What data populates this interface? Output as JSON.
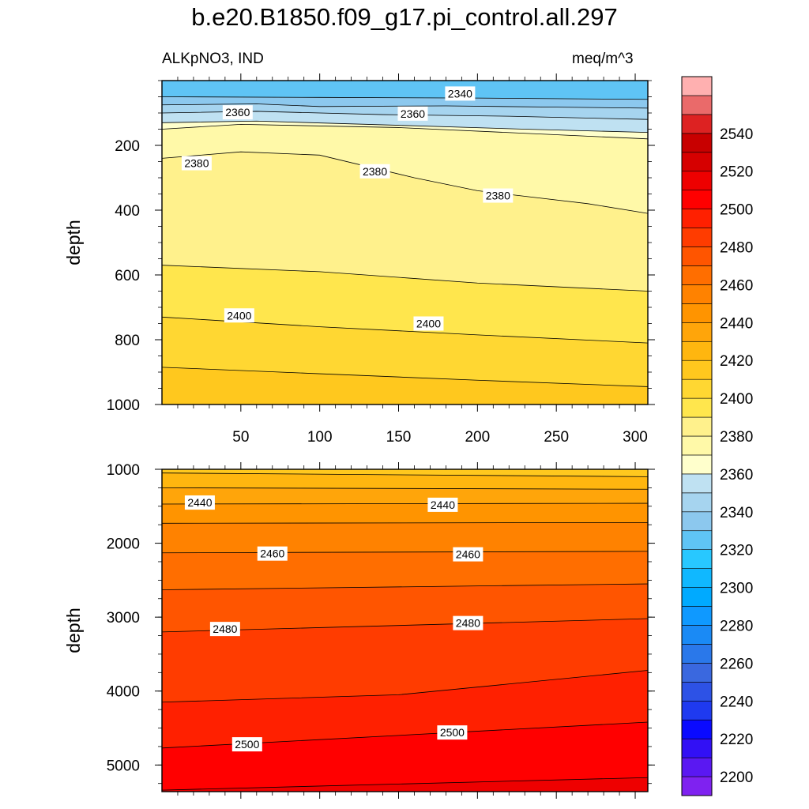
{
  "title": "b.e20.B1850.f09_g17.pi_control.all.297",
  "subtitle_left": "ALKpNO3, IND",
  "subtitle_right": "meq/m^3",
  "chart_data": [
    {
      "type": "heatmap",
      "name": "upper-panel",
      "ylabel": "depth",
      "xlim": [
        0,
        308
      ],
      "ylim": [
        1000,
        0
      ],
      "x_ticks": [
        50,
        100,
        150,
        200,
        250,
        300
      ],
      "x_tick_labels": [
        "50",
        "100",
        "150",
        "200",
        "250",
        "300"
      ],
      "y_ticks": [
        200,
        400,
        600,
        800,
        1000
      ],
      "y_tick_labels": [
        "200",
        "400",
        "600",
        "800",
        "1000"
      ],
      "contours": [
        {
          "level": 2330,
          "points": [
            [
              0,
              50
            ],
            [
              100,
              52
            ],
            [
              200,
              54
            ],
            [
              308,
              58
            ]
          ]
        },
        {
          "level": 2340,
          "points": [
            [
              0,
              75
            ],
            [
              60,
              72
            ],
            [
              100,
              80
            ],
            [
              180,
              78
            ],
            [
              250,
              82
            ],
            [
              308,
              85
            ]
          ]
        },
        {
          "level": 2350,
          "points": [
            [
              0,
              100
            ],
            [
              60,
              95
            ],
            [
              140,
              105
            ],
            [
              220,
              110
            ],
            [
              308,
              120
            ]
          ]
        },
        {
          "level": 2360,
          "points": [
            [
              0,
              130
            ],
            [
              60,
              125
            ],
            [
              150,
              138
            ],
            [
              230,
              150
            ],
            [
              308,
              160
            ]
          ]
        },
        {
          "level": 2370,
          "points": [
            [
              0,
              150
            ],
            [
              50,
              135
            ],
            [
              150,
              145
            ],
            [
              240,
              165
            ],
            [
              308,
              180
            ]
          ]
        },
        {
          "level": 2380,
          "points": [
            [
              0,
              240
            ],
            [
              50,
              220
            ],
            [
              100,
              230
            ],
            [
              160,
              300
            ],
            [
              200,
              340
            ],
            [
              270,
              380
            ],
            [
              308,
              410
            ]
          ]
        },
        {
          "level": 2390,
          "points": [
            [
              0,
              570
            ],
            [
              100,
              590
            ],
            [
              200,
              625
            ],
            [
              308,
              650
            ]
          ]
        },
        {
          "level": 2400,
          "points": [
            [
              0,
              730
            ],
            [
              100,
              760
            ],
            [
              200,
              785
            ],
            [
              308,
              810
            ]
          ]
        },
        {
          "level": 2410,
          "points": [
            [
              0,
              885
            ],
            [
              100,
              905
            ],
            [
              200,
              925
            ],
            [
              308,
              945
            ]
          ]
        }
      ],
      "contour_labels": [
        {
          "text": "2340",
          "x": 189,
          "y": 40
        },
        {
          "text": "2360",
          "x": 48,
          "y": 98
        },
        {
          "text": "2360",
          "x": 159,
          "y": 102
        },
        {
          "text": "2380",
          "x": 22,
          "y": 255
        },
        {
          "text": "2380",
          "x": 135,
          "y": 280
        },
        {
          "text": "2380",
          "x": 213,
          "y": 355
        },
        {
          "text": "2400",
          "x": 49,
          "y": 725
        },
        {
          "text": "2400",
          "x": 169,
          "y": 750
        }
      ]
    },
    {
      "type": "heatmap",
      "name": "lower-panel",
      "ylabel": "depth",
      "xlim": [
        0,
        308
      ],
      "ylim": [
        5360,
        1000
      ],
      "y_ticks": [
        1000,
        2000,
        3000,
        4000,
        5000
      ],
      "y_tick_labels": [
        "1000",
        "2000",
        "3000",
        "4000",
        "5000"
      ],
      "contours": [
        {
          "level": 2420,
          "points": [
            [
              0,
              1050
            ],
            [
              308,
              1100
            ]
          ]
        },
        {
          "level": 2430,
          "points": [
            [
              0,
              1250
            ],
            [
              308,
              1270
            ]
          ]
        },
        {
          "level": 2440,
          "points": [
            [
              0,
              1470
            ],
            [
              308,
              1460
            ]
          ]
        },
        {
          "level": 2450,
          "points": [
            [
              0,
              1730
            ],
            [
              308,
              1720
            ]
          ]
        },
        {
          "level": 2460,
          "points": [
            [
              0,
              2130
            ],
            [
              308,
              2110
            ]
          ]
        },
        {
          "level": 2470,
          "points": [
            [
              0,
              2630
            ],
            [
              308,
              2550
            ]
          ]
        },
        {
          "level": 2480,
          "points": [
            [
              0,
              3200
            ],
            [
              308,
              3020
            ]
          ]
        },
        {
          "level": 2490,
          "points": [
            [
              0,
              4150
            ],
            [
              150,
              4050
            ],
            [
              308,
              3720
            ]
          ]
        },
        {
          "level": 2500,
          "points": [
            [
              0,
              4770
            ],
            [
              308,
              4420
            ]
          ]
        },
        {
          "level": 2510,
          "points": [
            [
              0,
              5340
            ],
            [
              308,
              5170
            ]
          ]
        }
      ],
      "contour_labels": [
        {
          "text": "2440",
          "x": 24,
          "y": 1450
        },
        {
          "text": "2440",
          "x": 178,
          "y": 1480
        },
        {
          "text": "2460",
          "x": 70,
          "y": 2140
        },
        {
          "text": "2460",
          "x": 194,
          "y": 2150
        },
        {
          "text": "2480",
          "x": 40,
          "y": 3160
        },
        {
          "text": "2480",
          "x": 194,
          "y": 3080
        },
        {
          "text": "2500",
          "x": 54,
          "y": 4720
        },
        {
          "text": "2500",
          "x": 184,
          "y": 4560
        }
      ]
    },
    {
      "type": "colorbar",
      "name": "colorbar",
      "boundaries": [
        2190,
        2200,
        2210,
        2220,
        2230,
        2240,
        2250,
        2260,
        2270,
        2280,
        2290,
        2300,
        2310,
        2320,
        2330,
        2340,
        2350,
        2360,
        2370,
        2380,
        2390,
        2400,
        2410,
        2420,
        2430,
        2440,
        2450,
        2460,
        2470,
        2480,
        2490,
        2500,
        2510,
        2520,
        2530,
        2540,
        2550,
        2560
      ],
      "colors": [
        "#7f22f0",
        "#5a18f2",
        "#3210f5",
        "#0a0aff",
        "#1f3af0",
        "#2d52e6",
        "#3a68df",
        "#2a78ea",
        "#1a8af5",
        "#0f99ff",
        "#00aaff",
        "#10b8ff",
        "#28c8ff",
        "#5fc4f5",
        "#8cc8ee",
        "#a6d4ef",
        "#bfe1f2",
        "#ffffcc",
        "#fff9a8",
        "#fff18c",
        "#ffe64d",
        "#ffd732",
        "#ffc81e",
        "#ffb60f",
        "#ffa50a",
        "#ff9400",
        "#ff8200",
        "#ff6e00",
        "#ff5500",
        "#ff3c00",
        "#ff2000",
        "#ff0000",
        "#ee0000",
        "#d60000",
        "#c80000",
        "#dd2222",
        "#ea6a6a",
        "#ffb0b0"
      ],
      "tick_labels": [
        "2200",
        "2220",
        "2240",
        "2260",
        "2280",
        "2300",
        "2320",
        "2340",
        "2360",
        "2380",
        "2400",
        "2420",
        "2440",
        "2460",
        "2480",
        "2500",
        "2520",
        "2540"
      ]
    }
  ]
}
